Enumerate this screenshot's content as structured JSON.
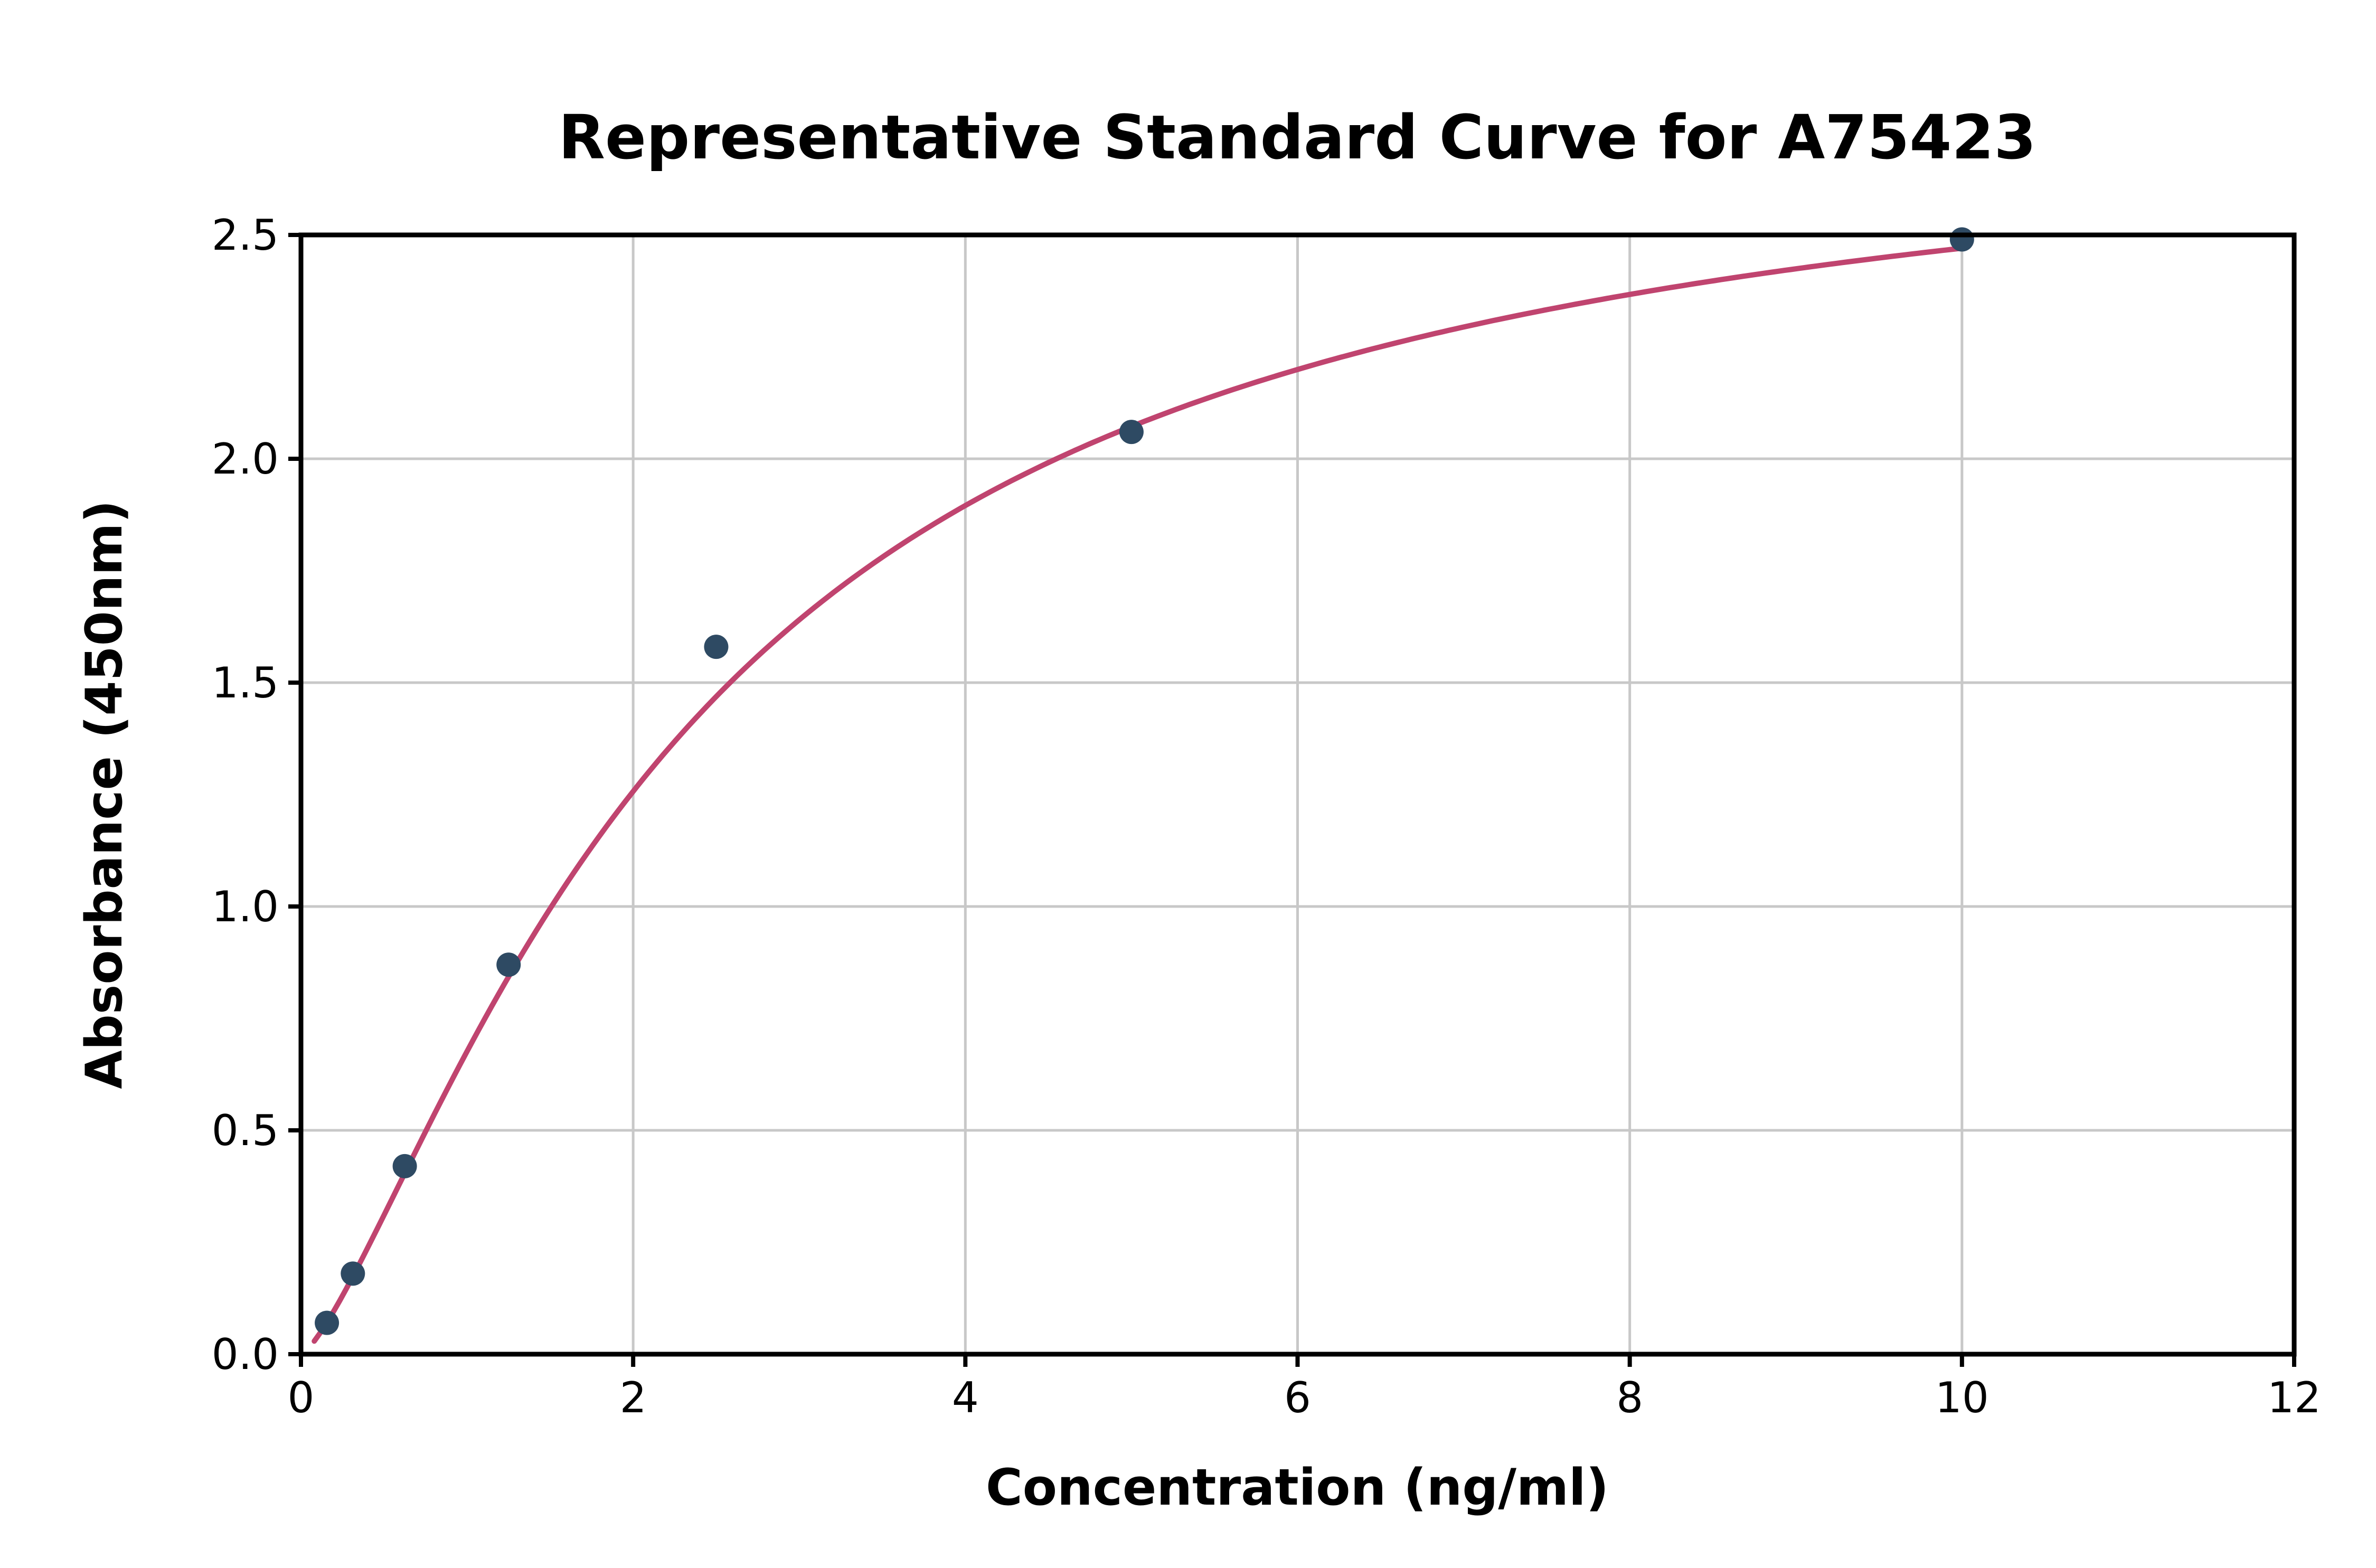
{
  "figure": {
    "background": "#ffffff"
  },
  "chart_data": {
    "type": "scatter",
    "subtype": "standard-curve-with-fit-line",
    "title": "Representative Standard Curve for A75423",
    "xlabel": "Concentration (ng/ml)",
    "ylabel": "Absorbance (450nm)",
    "xlim": [
      0,
      12
    ],
    "ylim": [
      0,
      2.5
    ],
    "x_ticks": [
      0,
      2,
      4,
      6,
      8,
      10,
      12
    ],
    "x_tick_labels": [
      "0",
      "2",
      "4",
      "6",
      "8",
      "10",
      "12"
    ],
    "y_ticks": [
      0,
      0.5,
      1.0,
      1.5,
      2.0,
      2.5
    ],
    "y_tick_labels": [
      "0.0",
      "0.5",
      "1.0",
      "1.5",
      "2.0",
      "2.5"
    ],
    "grid": true,
    "legend": "none",
    "points": [
      {
        "x": 0.156,
        "y": 0.07
      },
      {
        "x": 0.3125,
        "y": 0.18
      },
      {
        "x": 0.625,
        "y": 0.42
      },
      {
        "x": 1.25,
        "y": 0.87
      },
      {
        "x": 2.5,
        "y": 1.58
      },
      {
        "x": 5.0,
        "y": 2.06
      },
      {
        "x": 10.0,
        "y": 2.49
      }
    ],
    "fit_curve": {
      "model": "hill",
      "formula": "y = ymax * x^n / (k^n + x^n)",
      "ymax": 2.82,
      "k": 2.35,
      "n": 1.35,
      "x_start": 0.08,
      "x_end": 10.0
    },
    "colors": {
      "points": "#2e4a63",
      "curve": "#c0446f",
      "grid": "#c8c8c8",
      "axis": "#000000",
      "background": "#ffffff"
    }
  }
}
